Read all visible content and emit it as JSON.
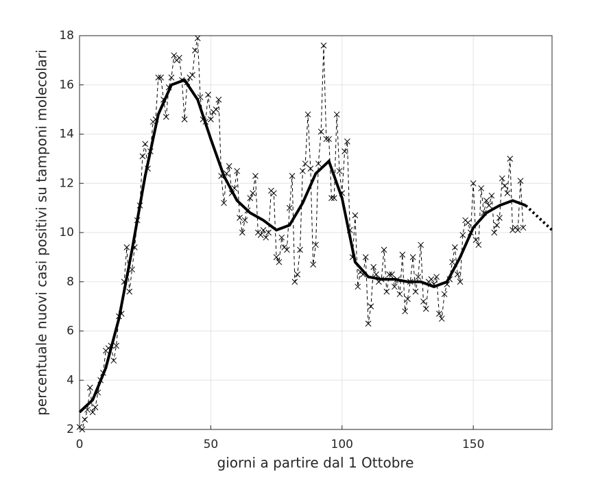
{
  "chart_data": {
    "type": "line",
    "xlabel": "giorni a partire dal 1 Ottobre",
    "ylabel": "percentuale nuovi casi positivi su tamponi molecolari",
    "xlim": [
      0,
      180
    ],
    "ylim": [
      2,
      18
    ],
    "xticks": [
      0,
      50,
      100,
      150
    ],
    "yticks": [
      2,
      4,
      6,
      8,
      10,
      12,
      14,
      16,
      18
    ],
    "grid": true,
    "series": [
      {
        "style": "dashed-x",
        "color": "#000000",
        "x": [
          0,
          1,
          2,
          3,
          4,
          5,
          6,
          7,
          8,
          9,
          10,
          11,
          12,
          13,
          14,
          15,
          16,
          17,
          18,
          19,
          20,
          21,
          22,
          23,
          24,
          25,
          26,
          27,
          28,
          29,
          30,
          31,
          32,
          33,
          34,
          35,
          36,
          37,
          38,
          39,
          40,
          41,
          42,
          43,
          44,
          45,
          46,
          47,
          48,
          49,
          50,
          51,
          52,
          53,
          54,
          55,
          56,
          57,
          58,
          59,
          60,
          61,
          62,
          63,
          64,
          65,
          66,
          67,
          68,
          69,
          70,
          71,
          72,
          73,
          74,
          75,
          76,
          77,
          78,
          79,
          80,
          81,
          82,
          83,
          84,
          85,
          86,
          87,
          88,
          89,
          90,
          91,
          92,
          93,
          94,
          95,
          96,
          97,
          98,
          99,
          100,
          101,
          102,
          103,
          104,
          105,
          106,
          107,
          108,
          109,
          110,
          111,
          112,
          113,
          114,
          115,
          116,
          117,
          118,
          119,
          120,
          121,
          122,
          123,
          124,
          125,
          126,
          127,
          128,
          129,
          130,
          131,
          132,
          133,
          134,
          135,
          136,
          137,
          138,
          139,
          140,
          141,
          142,
          143,
          144,
          145,
          146,
          147,
          148,
          149,
          150,
          151,
          152,
          153,
          154,
          155,
          156,
          157,
          158,
          159,
          160,
          161,
          162,
          163,
          164,
          165,
          166,
          167,
          168,
          169
        ],
        "values": [
          2.1,
          2.0,
          2.4,
          2.8,
          3.7,
          2.7,
          2.9,
          3.5,
          4.0,
          4.3,
          5.2,
          5.3,
          5.4,
          4.8,
          5.4,
          6.6,
          6.7,
          8.0,
          9.4,
          7.6,
          8.5,
          9.4,
          10.5,
          11.1,
          13.1,
          13.6,
          12.6,
          13.3,
          14.5,
          14.6,
          16.3,
          16.3,
          15.4,
          14.7,
          15.9,
          16.3,
          17.2,
          17.0,
          17.1,
          16.2,
          14.6,
          16.1,
          16.3,
          16.4,
          17.4,
          17.9,
          15.5,
          14.6,
          14.5,
          15.6,
          14.6,
          14.9,
          15.0,
          15.4,
          12.3,
          11.2,
          12.4,
          12.7,
          11.6,
          11.8,
          12.5,
          10.6,
          10.0,
          10.5,
          10.9,
          11.4,
          11.6,
          12.3,
          10.0,
          9.9,
          10.1,
          9.8,
          10.0,
          11.7,
          11.6,
          9.0,
          8.8,
          9.8,
          9.4,
          9.3,
          11.0,
          12.3,
          8.0,
          8.3,
          9.3,
          12.5,
          12.8,
          14.8,
          12.6,
          8.7,
          9.5,
          12.8,
          14.1,
          17.6,
          13.8,
          13.8,
          11.4,
          11.4,
          14.8,
          12.5,
          11.6,
          13.3,
          13.7,
          10.1,
          9.0,
          10.7,
          7.8,
          8.4,
          8.3,
          9.0,
          6.3,
          7.0,
          8.6,
          8.3,
          8.0,
          8.1,
          9.3,
          7.6,
          8.3,
          8.3,
          7.8,
          8.1,
          7.5,
          9.1,
          6.8,
          7.3,
          8.0,
          9.0,
          7.6,
          8.2,
          9.5,
          7.2,
          6.9,
          8.0,
          8.1,
          7.9,
          8.2,
          6.7,
          6.5,
          7.5,
          7.9,
          8.1,
          8.8,
          9.4,
          8.3,
          8.0,
          9.9,
          10.5,
          10.4,
          10.0,
          12.0,
          9.7,
          9.5,
          11.8,
          10.8,
          11.3,
          11.1,
          11.5,
          10.0,
          10.3,
          10.6,
          12.2,
          11.9,
          11.6,
          13.0,
          10.1,
          10.2,
          10.1,
          12.1,
          10.2
        ]
      },
      {
        "style": "solid",
        "color": "#000000",
        "x": [
          0,
          5,
          10,
          15,
          20,
          25,
          30,
          35,
          40,
          45,
          50,
          55,
          60,
          65,
          70,
          75,
          80,
          85,
          90,
          95,
          100,
          105,
          110,
          115,
          120,
          125,
          130,
          135,
          140,
          145,
          150,
          155,
          160,
          165,
          170
        ],
        "values": [
          2.7,
          3.2,
          4.5,
          6.5,
          9.3,
          12.3,
          14.8,
          16.0,
          16.2,
          15.4,
          13.8,
          12.3,
          11.3,
          10.8,
          10.5,
          10.1,
          10.3,
          11.2,
          12.4,
          12.9,
          11.4,
          8.8,
          8.2,
          8.1,
          8.1,
          8.0,
          8.0,
          7.8,
          8.0,
          9.0,
          10.2,
          10.8,
          11.1,
          11.3,
          11.1
        ]
      },
      {
        "style": "dotted",
        "color": "#000000",
        "x": [
          170,
          175,
          180
        ],
        "values": [
          11.1,
          10.6,
          10.1
        ]
      }
    ]
  }
}
